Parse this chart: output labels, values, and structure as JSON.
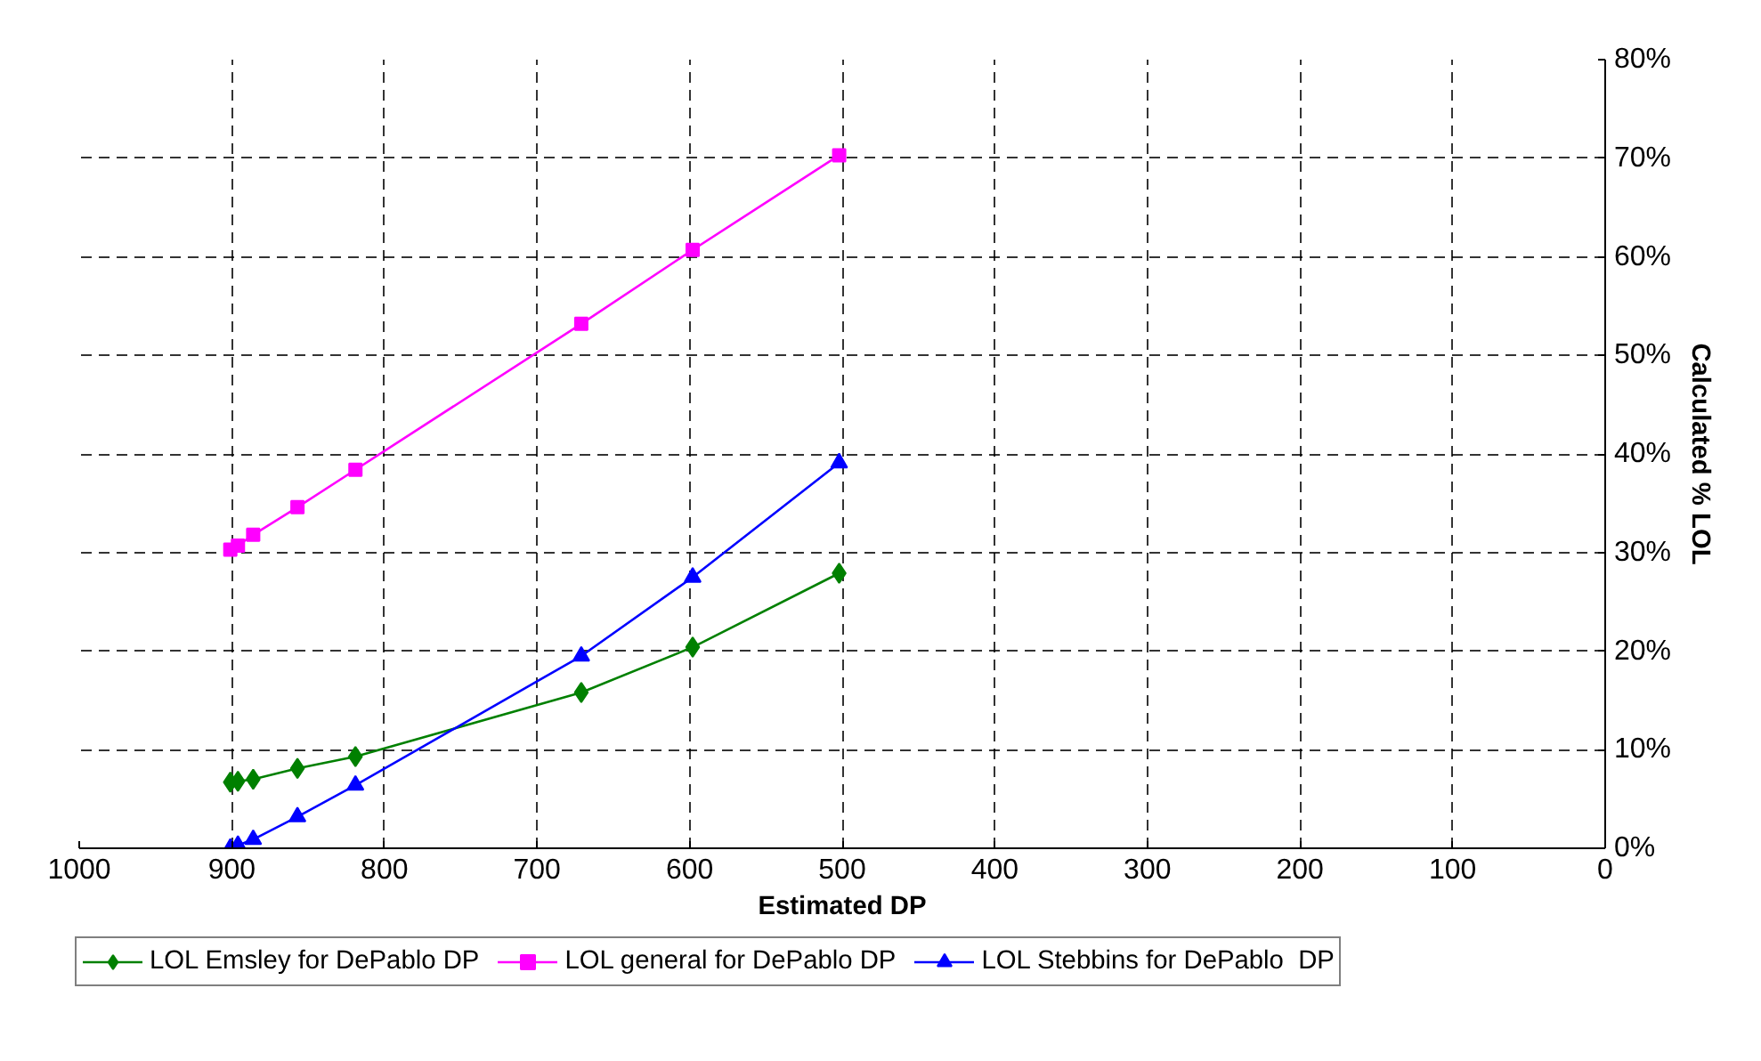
{
  "chart_data": {
    "type": "line",
    "xlabel": "Estimated DP",
    "ylabel": "Calculated % LOL",
    "xlim": [
      1000,
      0
    ],
    "xticks": [
      1000,
      900,
      800,
      700,
      600,
      500,
      400,
      300,
      200,
      100,
      0
    ],
    "ylim": [
      0,
      80
    ],
    "yticks": [
      {
        "value": 0,
        "label": "0%"
      },
      {
        "value": 10,
        "label": "10%"
      },
      {
        "value": 20,
        "label": "20%"
      },
      {
        "value": 30,
        "label": "30%"
      },
      {
        "value": 40,
        "label": "40%"
      },
      {
        "value": 50,
        "label": "50%"
      },
      {
        "value": 60,
        "label": "60%"
      },
      {
        "value": 70,
        "label": "70%"
      },
      {
        "value": 80,
        "label": "80%"
      }
    ],
    "grid": true,
    "legend": "bottom",
    "line_style": "solid",
    "series": [
      {
        "name": "LOL Emsley for DePablo DP",
        "color": "#008000",
        "marker": "diamond",
        "x": [
          901,
          896,
          886,
          857,
          819,
          671,
          598,
          502
        ],
        "values": [
          6.7,
          6.8,
          7.0,
          8.1,
          9.3,
          15.8,
          20.4,
          27.9
        ]
      },
      {
        "name": "LOL general for DePablo DP",
        "color": "#ff00ff",
        "marker": "square",
        "x": [
          901,
          896,
          886,
          857,
          819,
          671,
          598,
          502
        ],
        "values": [
          30.3,
          30.7,
          31.8,
          34.6,
          38.4,
          53.2,
          60.7,
          70.3
        ]
      },
      {
        "name": "LOL Stebbins for DePablo  DP",
        "color": "#0000ff",
        "marker": "triangle",
        "x": [
          901,
          896,
          886,
          857,
          819,
          671,
          598,
          502
        ],
        "values": [
          0.0,
          0.3,
          0.9,
          3.2,
          6.4,
          19.5,
          27.5,
          39.1
        ]
      }
    ]
  }
}
